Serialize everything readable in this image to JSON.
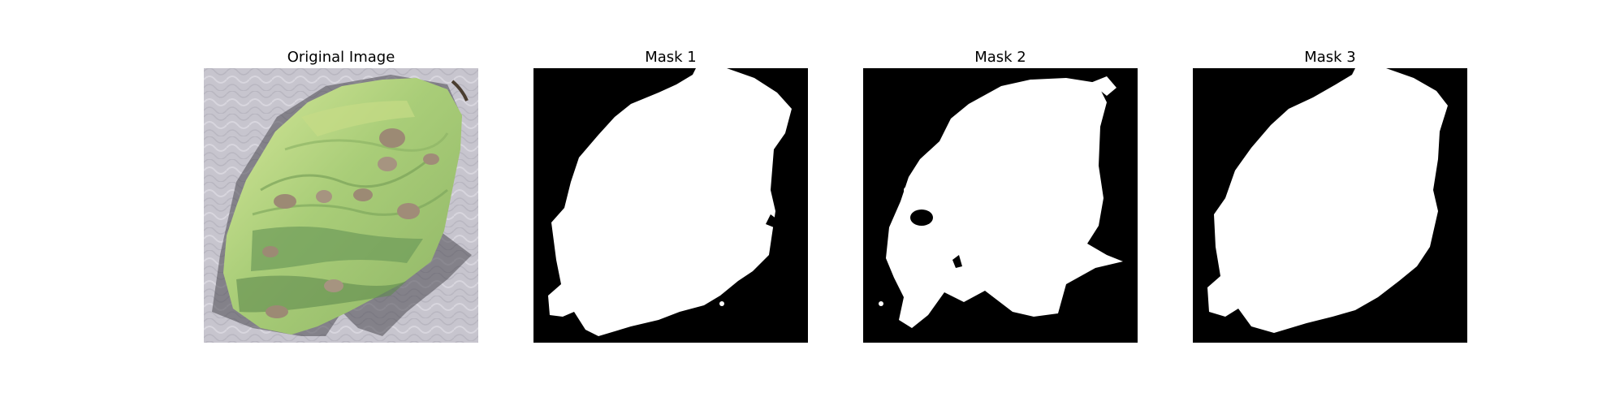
{
  "figure": {
    "panels": [
      {
        "title": "Original Image"
      },
      {
        "title": "Mask 1"
      },
      {
        "title": "Mask 2"
      },
      {
        "title": "Mask 3"
      }
    ]
  },
  "colors": {
    "background": "#ffffff",
    "mask_background": "#000000",
    "mask_foreground": "#ffffff",
    "leaf_light": "#bfe08c",
    "leaf_mid": "#9bc36a",
    "leaf_dark": "#6f8f55",
    "lesion": "#9c8a74",
    "backdrop": "#c5c3cc"
  }
}
